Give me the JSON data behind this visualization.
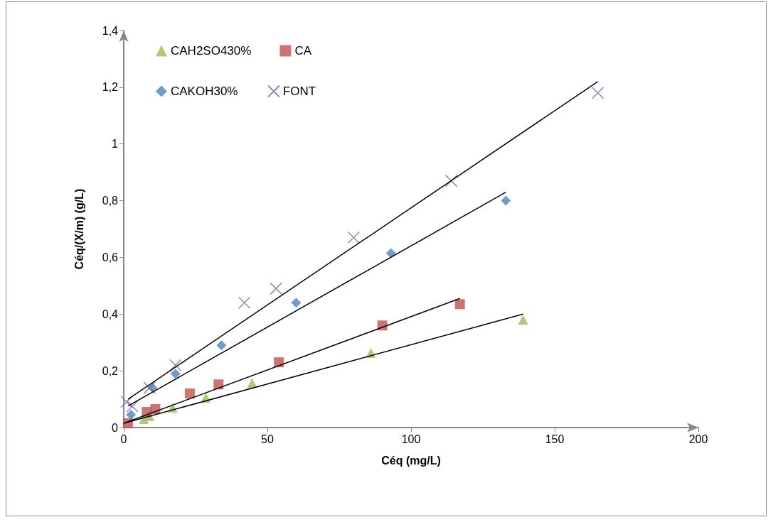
{
  "chart_data": {
    "type": "scatter",
    "xlabel": "Céq (mg/L)",
    "ylabel": "Céq/(X/m) (g/L)",
    "xlim": [
      0,
      200
    ],
    "xticks": [
      0,
      50,
      100,
      150,
      200
    ],
    "ylim": [
      0,
      1.4
    ],
    "yticks": [
      {
        "value": 0,
        "label": "0"
      },
      {
        "value": 0.2,
        "label": "0,2"
      },
      {
        "value": 0.4,
        "label": "0,4"
      },
      {
        "value": 0.6,
        "label": "0,6"
      },
      {
        "value": 0.8,
        "label": "0,8"
      },
      {
        "value": 1,
        "label": "1"
      },
      {
        "value": 1.2,
        "label": "1,2"
      },
      {
        "value": 1.4,
        "label": "1,4"
      }
    ],
    "grid": false,
    "legend": "top left",
    "series": [
      {
        "name": "CAH2SO430%",
        "color": "#9bbb59",
        "marker": "triangle",
        "x": [
          7,
          9,
          17,
          28.6,
          44.7,
          86,
          139
        ],
        "values": [
          0.03,
          0.04,
          0.07,
          0.105,
          0.157,
          0.263,
          0.38
        ]
      },
      {
        "name": "CA",
        "color": "#c0504d",
        "marker": "square",
        "x": [
          1.5,
          8,
          11,
          23,
          33,
          54,
          90,
          117
        ],
        "values": [
          0.015,
          0.055,
          0.065,
          0.12,
          0.152,
          0.23,
          0.36,
          0.435
        ]
      },
      {
        "name": "CAKOH30%",
        "color": "#4f81bd",
        "marker": "diamond",
        "x": [
          2.5,
          10,
          18,
          34,
          60,
          93,
          133
        ],
        "values": [
          0.045,
          0.14,
          0.19,
          0.29,
          0.44,
          0.615,
          0.8
        ]
      },
      {
        "name": "FONT",
        "color": "#8064a2",
        "marker": "cross",
        "x": [
          1,
          3,
          9,
          18,
          42,
          53,
          80,
          114,
          165
        ],
        "values": [
          0.09,
          0.075,
          0.14,
          0.22,
          0.44,
          0.49,
          0.67,
          0.87,
          1.18
        ]
      },
      {
        "type": "line",
        "color": "#000000",
        "marker": "none",
        "x": [
          0,
          139
        ],
        "values": [
          0.015,
          0.4
        ]
      },
      {
        "type": "line",
        "color": "#000000",
        "marker": "none",
        "x": [
          0,
          117
        ],
        "values": [
          0.015,
          0.455
        ]
      },
      {
        "type": "line",
        "color": "#000000",
        "marker": "none",
        "x": [
          1.5,
          133
        ],
        "values": [
          0.076,
          0.83
        ]
      },
      {
        "type": "line",
        "color": "#000000",
        "marker": "none",
        "x": [
          1.5,
          165
        ],
        "values": [
          0.1,
          1.22
        ]
      }
    ]
  }
}
